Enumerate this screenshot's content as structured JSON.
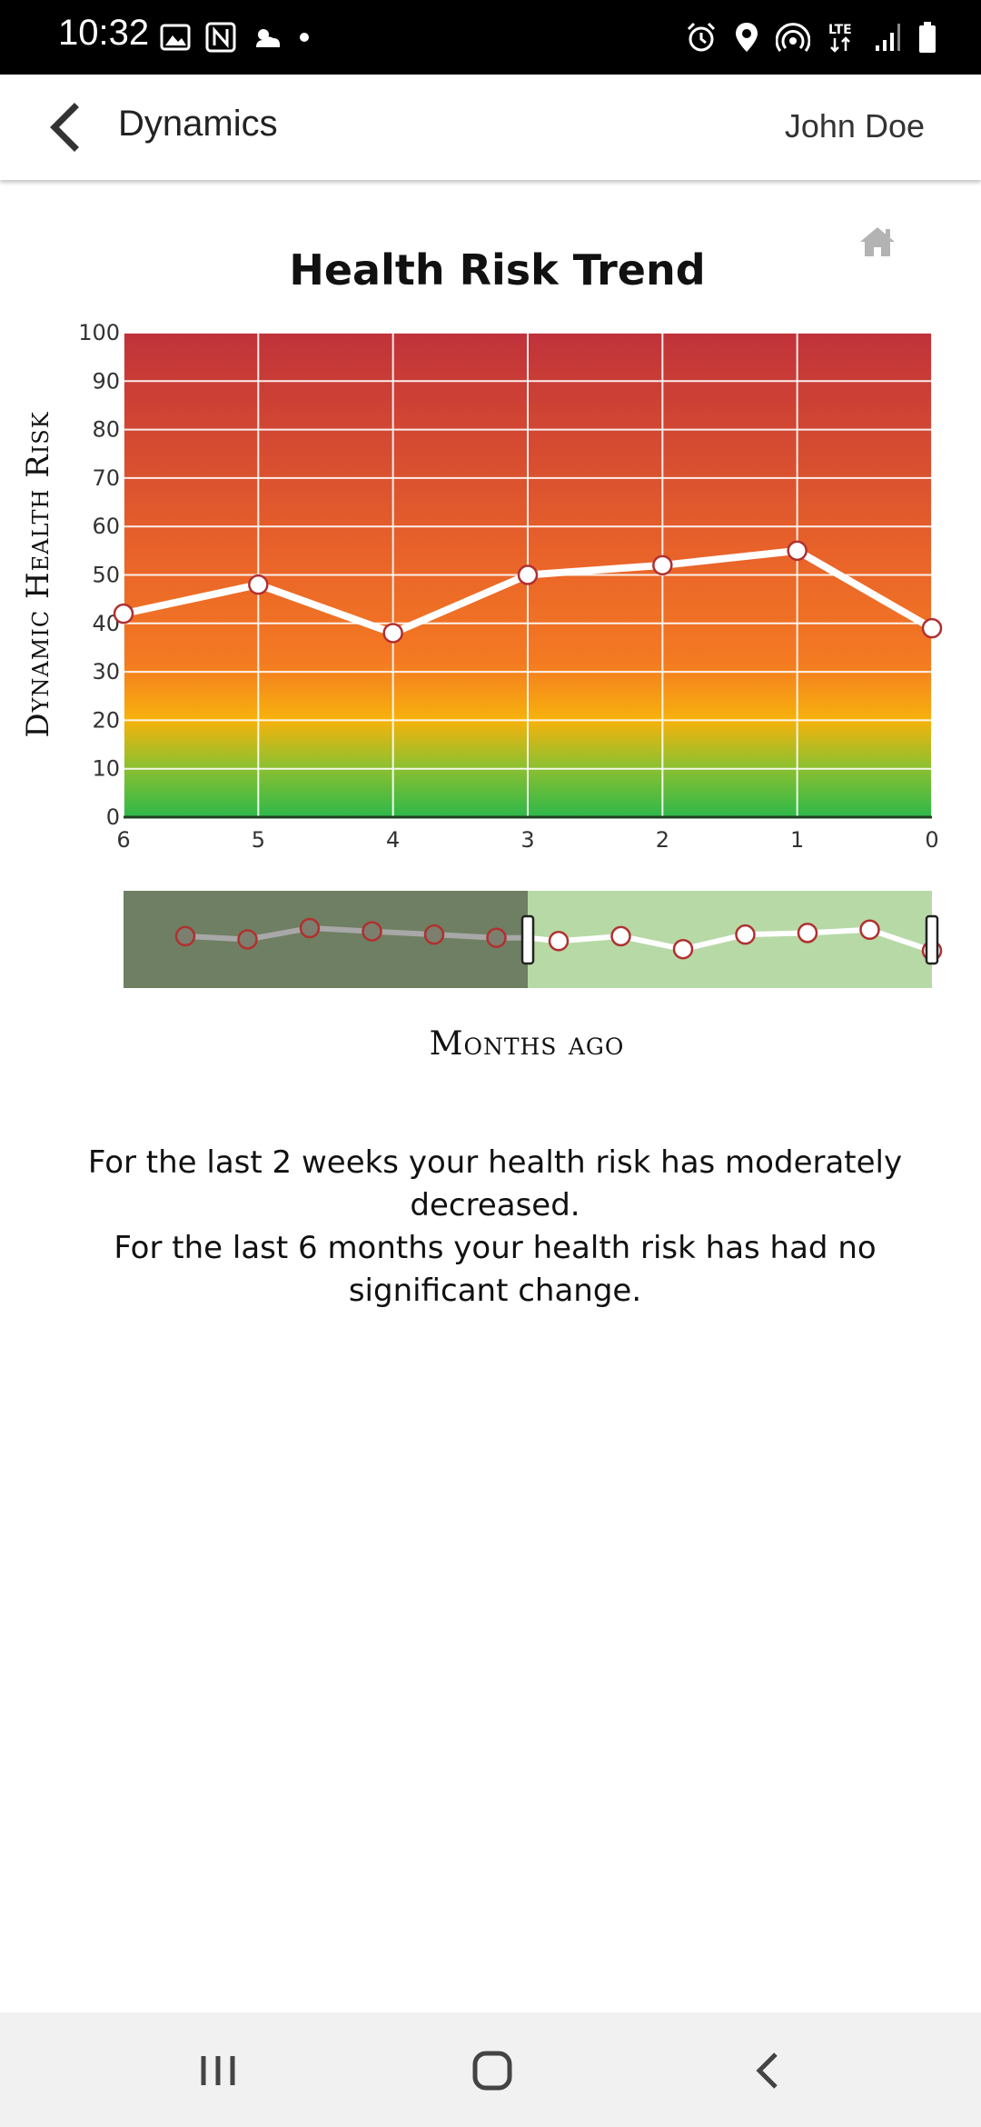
{
  "status_bar": {
    "time": "10:32",
    "left_icons": [
      "image-icon",
      "nfc-icon",
      "weather-icon",
      "dot-icon"
    ],
    "right_icons": [
      "alarm-icon",
      "location-icon",
      "hotspot-icon",
      "lte-icon",
      "signal-icon",
      "battery-icon"
    ],
    "network": "LTE"
  },
  "app_bar": {
    "title": "Dynamics",
    "user": "John Doe",
    "back_icon": "chevron-left-icon"
  },
  "home_icon": "home-icon",
  "chart_data": {
    "type": "line",
    "title": "Health Risk Trend",
    "ylabel": "Dynamic Health Risk",
    "xlabel": "Months ago",
    "x": [
      6,
      5,
      4,
      3,
      2,
      1,
      0
    ],
    "values": [
      42,
      48,
      38,
      50,
      52,
      55,
      39
    ],
    "xticks": [
      "6",
      "5",
      "4",
      "3",
      "2",
      "1",
      "0"
    ],
    "yticks": [
      "0",
      "10",
      "20",
      "30",
      "40",
      "50",
      "60",
      "70",
      "80",
      "90",
      "100"
    ],
    "ylim": [
      0,
      100
    ],
    "xlim": [
      6,
      0
    ],
    "grid": true,
    "background_gradient": [
      "#2db84a",
      "#f7b20c",
      "#f47a22",
      "#e8622a",
      "#c0323a"
    ],
    "line_color": "#ffffff",
    "marker_edge_color": "#b03030",
    "navigator": {
      "series": [
        42,
        40,
        47,
        45,
        43,
        41,
        39,
        42,
        34,
        43,
        44,
        46,
        33
      ],
      "selected_range": [
        3,
        0
      ],
      "unselected_color": "#6f7f63",
      "selected_color": "#b7d9a6"
    }
  },
  "summary": {
    "line1": "For the last 2 weeks your health risk has moderately decreased.",
    "line2": "For the last 6 months your health risk has had no significant change."
  },
  "nav_bar": {
    "items": [
      "recent-apps-icon",
      "home-nav-icon",
      "back-nav-icon"
    ]
  }
}
